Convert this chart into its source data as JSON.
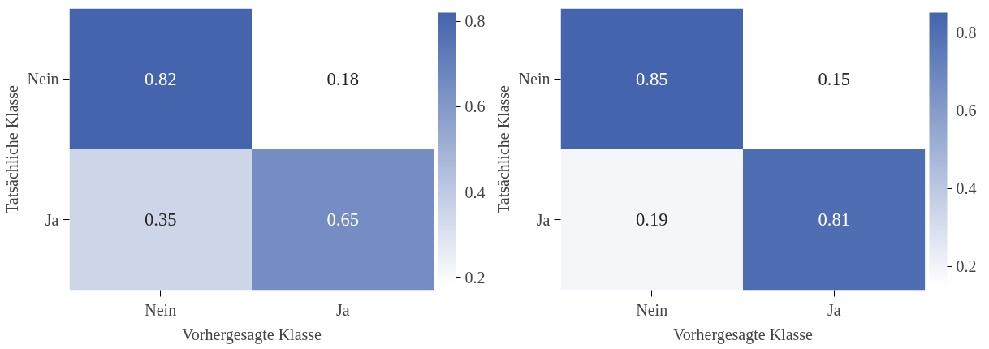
{
  "chart_data": [
    {
      "type": "heatmap",
      "categories": [
        "Nein",
        "Ja"
      ],
      "y_categories": [
        "Nein",
        "Ja"
      ],
      "xlabel": "Vorhergesagte Klasse",
      "ylabel": "Tatsächliche Klasse",
      "cells": [
        [
          0.82,
          0.18
        ],
        [
          0.35,
          0.65
        ]
      ],
      "clim": [
        0.18,
        0.82
      ],
      "cticks": [
        0.2,
        0.4,
        0.6,
        0.8
      ],
      "color": "#4464ad",
      "data_labels": true
    },
    {
      "type": "heatmap",
      "categories": [
        "Nein",
        "Ja"
      ],
      "y_categories": [
        "Nein",
        "Ja"
      ],
      "xlabel": "Vorhergesagte Klasse",
      "ylabel": "Tatsächliche Klasse",
      "cells": [
        [
          0.85,
          0.15
        ],
        [
          0.19,
          0.81
        ]
      ],
      "clim": [
        0.15,
        0.85
      ],
      "cticks": [
        0.2,
        0.4,
        0.6,
        0.8
      ],
      "color": "#4464ad",
      "data_labels": true
    }
  ]
}
